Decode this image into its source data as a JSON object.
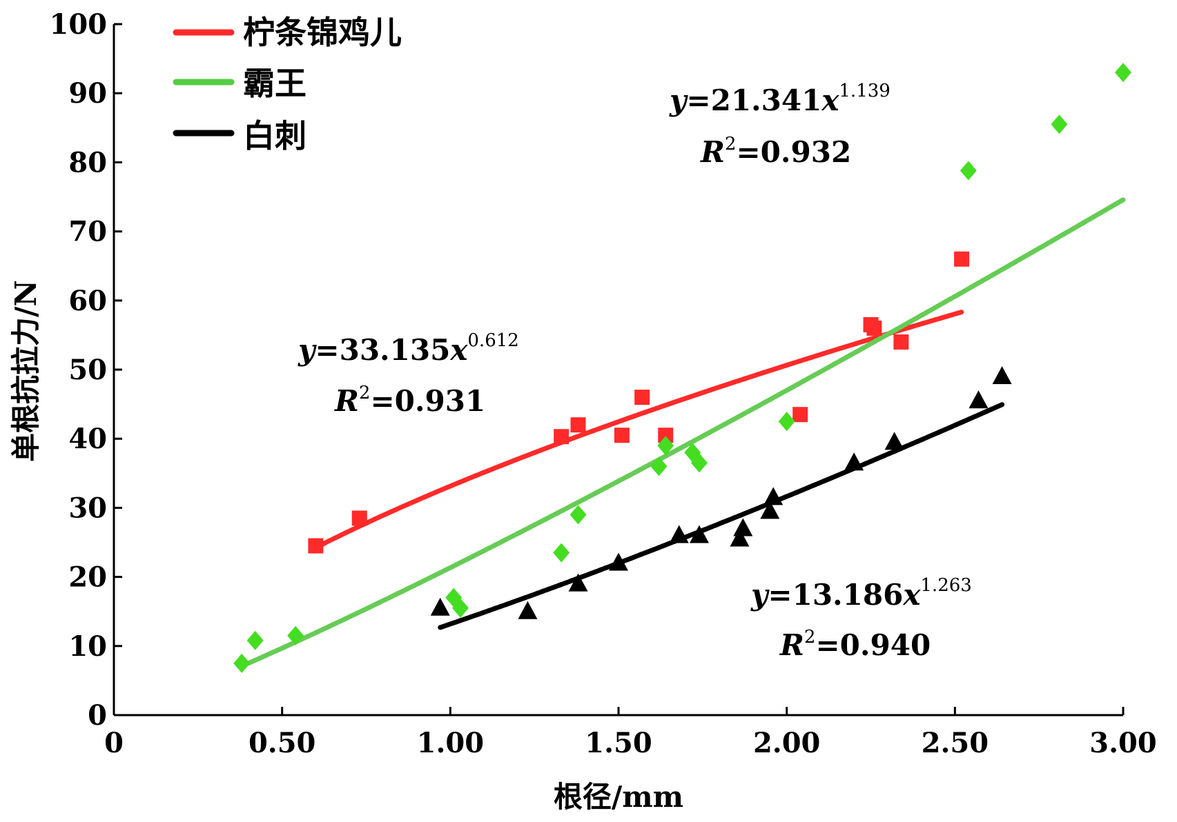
{
  "chart_data": {
    "type": "scatter",
    "xlabel": "根径/mm",
    "ylabel": "单根抗拉力/N",
    "xlim": [
      0,
      3.0
    ],
    "ylim": [
      0,
      100
    ],
    "xticks": [
      0,
      0.5,
      1.0,
      1.5,
      2.0,
      2.5,
      3.0
    ],
    "xtick_labels": [
      "0",
      "0.50",
      "1.00",
      "1.50",
      "2.00",
      "2.50",
      "3.00"
    ],
    "yticks": [
      0,
      10,
      20,
      30,
      40,
      50,
      60,
      70,
      80,
      90,
      100
    ],
    "ytick_labels": [
      "0",
      "10",
      "20",
      "30",
      "40",
      "50",
      "60",
      "70",
      "80",
      "90",
      "100"
    ],
    "legend_position": "top-left",
    "series": [
      {
        "name": "柠条锦鸡儿",
        "color": "#ff2a2a",
        "marker": "square",
        "points": [
          [
            0.6,
            24.5
          ],
          [
            0.73,
            28.5
          ],
          [
            1.33,
            40.3
          ],
          [
            1.38,
            42.0
          ],
          [
            1.51,
            40.5
          ],
          [
            1.57,
            46.0
          ],
          [
            1.64,
            40.5
          ],
          [
            2.04,
            43.5
          ],
          [
            2.25,
            56.5
          ],
          [
            2.26,
            56.0
          ],
          [
            2.34,
            54.0
          ],
          [
            2.52,
            66.0
          ]
        ],
        "fit": {
          "a": 33.135,
          "b": 0.612,
          "x_range": [
            0.6,
            2.52
          ]
        },
        "equation": {
          "lhs": "y",
          "eq_mid": "=33.135",
          "var": "x",
          "exp": "0.612"
        },
        "r2": {
          "lhs": "R",
          "exp": "2",
          "rhs": "=0.931"
        }
      },
      {
        "name": "霸王",
        "color": "#44dd22",
        "fit_color": "#66cc55",
        "marker": "diamond",
        "points": [
          [
            0.38,
            7.5
          ],
          [
            0.42,
            10.8
          ],
          [
            0.54,
            11.5
          ],
          [
            1.01,
            17.0
          ],
          [
            1.03,
            15.5
          ],
          [
            1.33,
            23.5
          ],
          [
            1.38,
            29.0
          ],
          [
            1.62,
            36.0
          ],
          [
            1.64,
            39.0
          ],
          [
            1.72,
            38.0
          ],
          [
            1.74,
            36.5
          ],
          [
            2.0,
            42.5
          ],
          [
            2.54,
            78.8
          ],
          [
            2.81,
            85.5
          ],
          [
            3.0,
            93.0
          ]
        ],
        "fit": {
          "a": 21.341,
          "b": 1.139,
          "x_range": [
            0.38,
            3.0
          ]
        },
        "equation": {
          "lhs": "y",
          "eq_mid": "=21.341",
          "var": "x",
          "exp": "1.139"
        },
        "r2": {
          "lhs": "R",
          "exp": "2",
          "rhs": "=0.932"
        }
      },
      {
        "name": "白刺",
        "color": "#000000",
        "marker": "triangle",
        "points": [
          [
            0.97,
            15.5
          ],
          [
            1.23,
            15.0
          ],
          [
            1.38,
            19.0
          ],
          [
            1.5,
            22.0
          ],
          [
            1.68,
            26.0
          ],
          [
            1.74,
            26.0
          ],
          [
            1.86,
            25.5
          ],
          [
            1.87,
            27.0
          ],
          [
            1.95,
            29.5
          ],
          [
            1.96,
            31.5
          ],
          [
            2.2,
            36.5
          ],
          [
            2.32,
            39.5
          ],
          [
            2.57,
            45.5
          ],
          [
            2.64,
            49.0
          ]
        ],
        "fit": {
          "a": 13.186,
          "b": 1.263,
          "x_range": [
            0.97,
            2.64
          ]
        },
        "equation": {
          "lhs": "y",
          "eq_mid": "=13.186",
          "var": "x",
          "exp": "1.263"
        },
        "r2": {
          "lhs": "R",
          "exp": "2",
          "rhs": "=0.940"
        }
      }
    ]
  }
}
